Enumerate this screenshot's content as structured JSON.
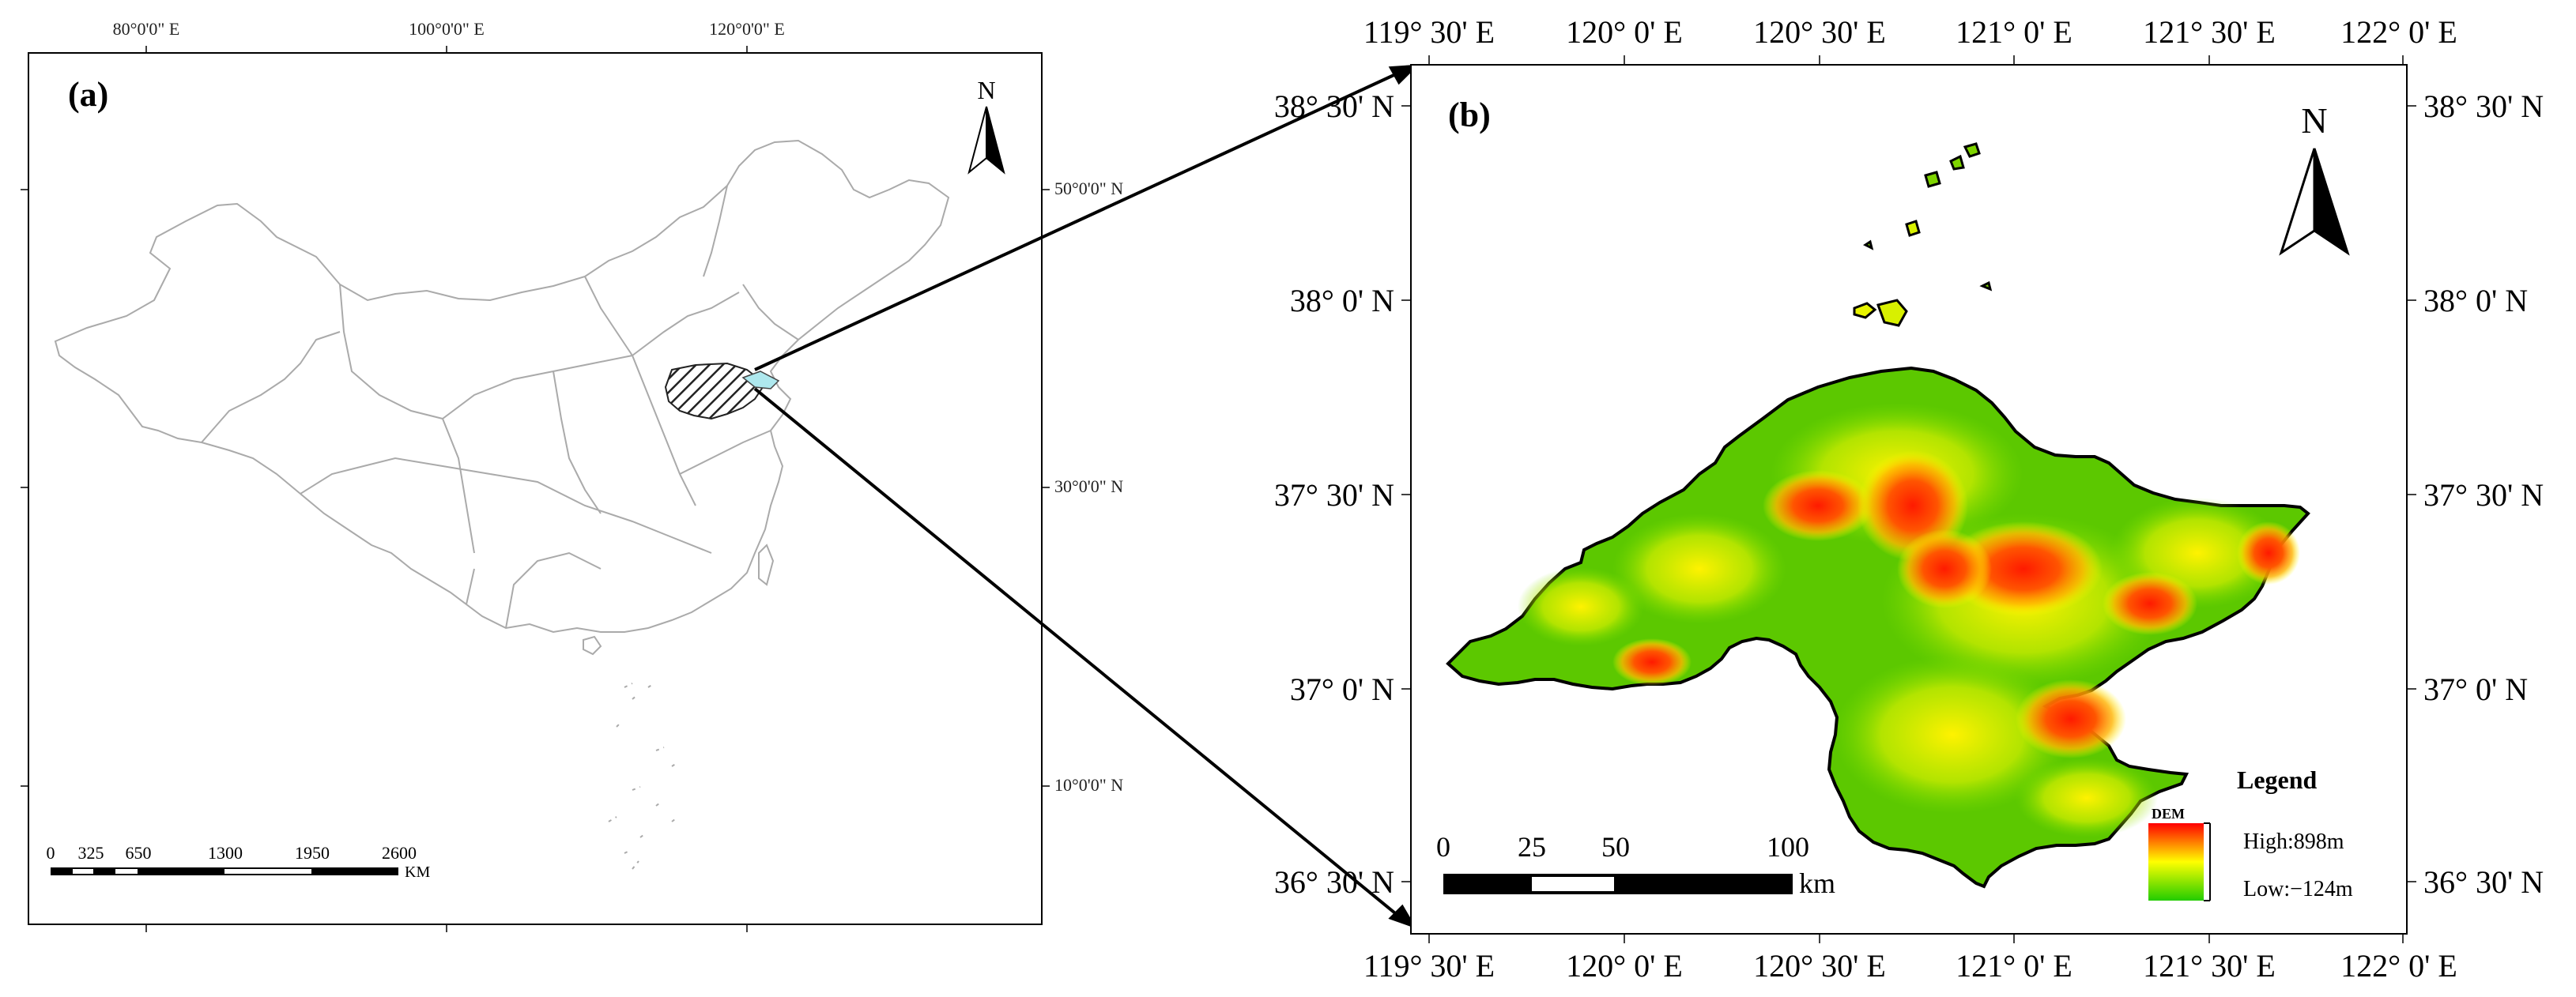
{
  "panel_a": {
    "label": "(a)",
    "north_label": "N",
    "top_ticks": [
      "80°0'0\" E",
      "100°0'0\" E",
      "120°0'0\" E"
    ],
    "right_ticks": [
      "50°0'0\" N",
      "30°0'0\" N",
      "10°0'0\" N"
    ],
    "scale": {
      "labels": [
        "0",
        "325",
        "650",
        "1300",
        "1950",
        "2600"
      ],
      "unit": "KM"
    }
  },
  "panel_b": {
    "label": "(b)",
    "north_label": "N",
    "top_ticks": [
      "119° 30' E",
      "120° 0' E",
      "120° 30' E",
      "121° 0' E",
      "121° 30' E",
      "122° 0' E"
    ],
    "bottom_ticks": [
      "119° 30' E",
      "120° 0' E",
      "120° 30' E",
      "121° 0' E",
      "121° 30' E",
      "122° 0' E"
    ],
    "left_ticks": [
      "38° 30' N",
      "38° 0' N",
      "37° 30' N",
      "37° 0' N",
      "36° 30' N"
    ],
    "right_ticks": [
      "38° 30' N",
      "38° 0' N",
      "37° 30' N",
      "37° 0' N",
      "36° 30' N"
    ],
    "scale": {
      "labels": [
        "0",
        "25",
        "50",
        "100"
      ],
      "unit": "km"
    },
    "legend": {
      "title": "Legend",
      "subtitle": "DEM",
      "high": "High:898m",
      "low": "Low:−124m",
      "colors": [
        "#ff0000",
        "#ffff00",
        "#22cc00"
      ]
    }
  }
}
